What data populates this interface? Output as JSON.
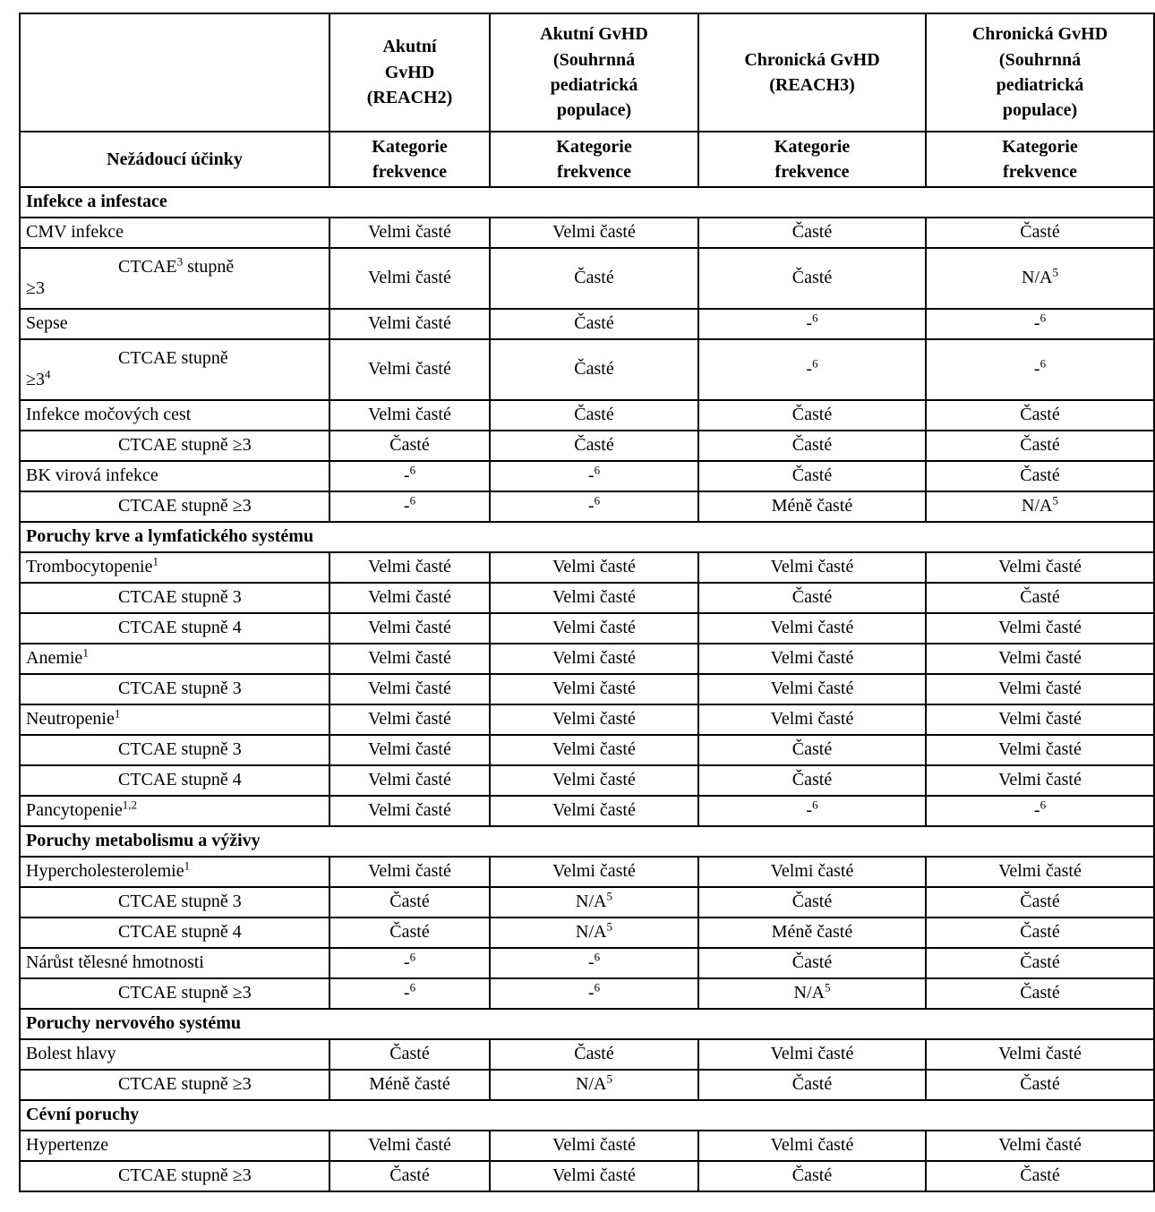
{
  "table": {
    "columns": [
      {
        "header": "",
        "subheader": "Nežádoucí účinky"
      },
      {
        "header": "Akutní\nGvHD\n(REACH2)",
        "subheader": "Kategorie\nfrekvence"
      },
      {
        "header": "Akutní GvHD\n(Souhrnná\npediatrická\npopulace)",
        "subheader": "Kategorie\nfrekvence"
      },
      {
        "header": "Chronická GvHD\n(REACH3)",
        "subheader": "Kategorie\nfrekvence"
      },
      {
        "header": "Chronická GvHD\n(Souhrnná\npediatrická\npopulace)",
        "subheader": "Kategorie\nfrekvence"
      }
    ],
    "rows": [
      {
        "type": "section",
        "label": "Infekce a infestace"
      },
      {
        "type": "item",
        "label": "CMV infekce",
        "values": [
          "Velmi časté",
          "Velmi časté",
          "Časté",
          "Časté"
        ]
      },
      {
        "type": "sub",
        "label": "CTCAE^{3} stupně\n≥3",
        "values": [
          "Velmi časté",
          "Časté",
          "Časté",
          "N/A^{5}"
        ]
      },
      {
        "type": "item",
        "label": "Sepse",
        "values": [
          "Velmi časté",
          "Časté",
          "-^{6}",
          "-^{6}"
        ]
      },
      {
        "type": "sub",
        "label": "CTCAE stupně\n≥3^{4}",
        "values": [
          "Velmi časté",
          "Časté",
          "-^{6}",
          "-^{6}"
        ]
      },
      {
        "type": "item",
        "label": "Infekce močových cest",
        "values": [
          "Velmi časté",
          "Časté",
          "Časté",
          "Časté"
        ]
      },
      {
        "type": "sub",
        "label": "CTCAE stupně ≥3",
        "values": [
          "Časté",
          "Časté",
          "Časté",
          "Časté"
        ]
      },
      {
        "type": "item",
        "label": "BK virová infekce",
        "values": [
          "-^{6}",
          "-^{6}",
          "Časté",
          "Časté"
        ]
      },
      {
        "type": "sub",
        "label": "CTCAE stupně ≥3",
        "values": [
          "-^{6}",
          "-^{6}",
          "Méně časté",
          "N/A^{5}"
        ]
      },
      {
        "type": "section",
        "label": "Poruchy krve a lymfatického systému"
      },
      {
        "type": "item",
        "label": "Trombocytopenie^{1}",
        "values": [
          "Velmi časté",
          "Velmi časté",
          "Velmi časté",
          "Velmi časté"
        ]
      },
      {
        "type": "sub",
        "label": "CTCAE stupně 3",
        "values": [
          "Velmi časté",
          "Velmi časté",
          "Časté",
          "Časté"
        ]
      },
      {
        "type": "sub",
        "label": "CTCAE stupně 4",
        "values": [
          "Velmi časté",
          "Velmi časté",
          "Velmi časté",
          "Velmi časté"
        ]
      },
      {
        "type": "item",
        "label": "Anemie^{1}",
        "values": [
          "Velmi časté",
          "Velmi časté",
          "Velmi časté",
          "Velmi časté"
        ]
      },
      {
        "type": "sub",
        "label": "CTCAE stupně 3",
        "values": [
          "Velmi časté",
          "Velmi časté",
          "Velmi časté",
          "Velmi časté"
        ]
      },
      {
        "type": "item",
        "label": "Neutropenie^{1}",
        "values": [
          "Velmi časté",
          "Velmi časté",
          "Velmi časté",
          "Velmi časté"
        ]
      },
      {
        "type": "sub",
        "label": "CTCAE stupně 3",
        "values": [
          "Velmi časté",
          "Velmi časté",
          "Časté",
          "Velmi časté"
        ]
      },
      {
        "type": "sub",
        "label": "CTCAE stupně 4",
        "values": [
          "Velmi časté",
          "Velmi časté",
          "Časté",
          "Velmi časté"
        ]
      },
      {
        "type": "item",
        "label": "Pancytopenie^{1,2}",
        "values": [
          "Velmi časté",
          "Velmi časté",
          "-^{6}",
          "-^{6}"
        ]
      },
      {
        "type": "section",
        "label": "Poruchy metabolismu a výživy"
      },
      {
        "type": "item",
        "label": "Hypercholesterolemie^{1}",
        "values": [
          "Velmi časté",
          "Velmi časté",
          "Velmi časté",
          "Velmi časté"
        ]
      },
      {
        "type": "sub",
        "label": "CTCAE stupně 3",
        "values": [
          "Časté",
          "N/A^{5}",
          "Časté",
          "Časté"
        ]
      },
      {
        "type": "sub",
        "label": "CTCAE stupně 4",
        "values": [
          "Časté",
          "N/A^{5}",
          "Méně časté",
          "Časté"
        ]
      },
      {
        "type": "item",
        "label": "Nárůst tělesné hmotnosti",
        "values": [
          "-^{6}",
          "-^{6}",
          "Časté",
          "Časté"
        ]
      },
      {
        "type": "sub",
        "label": "CTCAE stupně ≥3",
        "values": [
          "-^{6}",
          "-^{6}",
          "N/A^{5}",
          "Časté"
        ]
      },
      {
        "type": "section",
        "label": "Poruchy nervového systému"
      },
      {
        "type": "item",
        "label": "Bolest hlavy",
        "values": [
          "Časté",
          "Časté",
          "Velmi časté",
          "Velmi časté"
        ]
      },
      {
        "type": "sub",
        "label": "CTCAE stupně ≥3",
        "values": [
          "Méně časté",
          "N/A^{5}",
          "Časté",
          "Časté"
        ]
      },
      {
        "type": "section",
        "label": "Cévní poruchy"
      },
      {
        "type": "item",
        "label": "Hypertenze",
        "values": [
          "Velmi časté",
          "Velmi časté",
          "Velmi časté",
          "Velmi časté"
        ]
      },
      {
        "type": "sub",
        "label": "CTCAE stupně ≥3",
        "values": [
          "Časté",
          "Velmi časté",
          "Časté",
          "Časté"
        ]
      }
    ]
  }
}
